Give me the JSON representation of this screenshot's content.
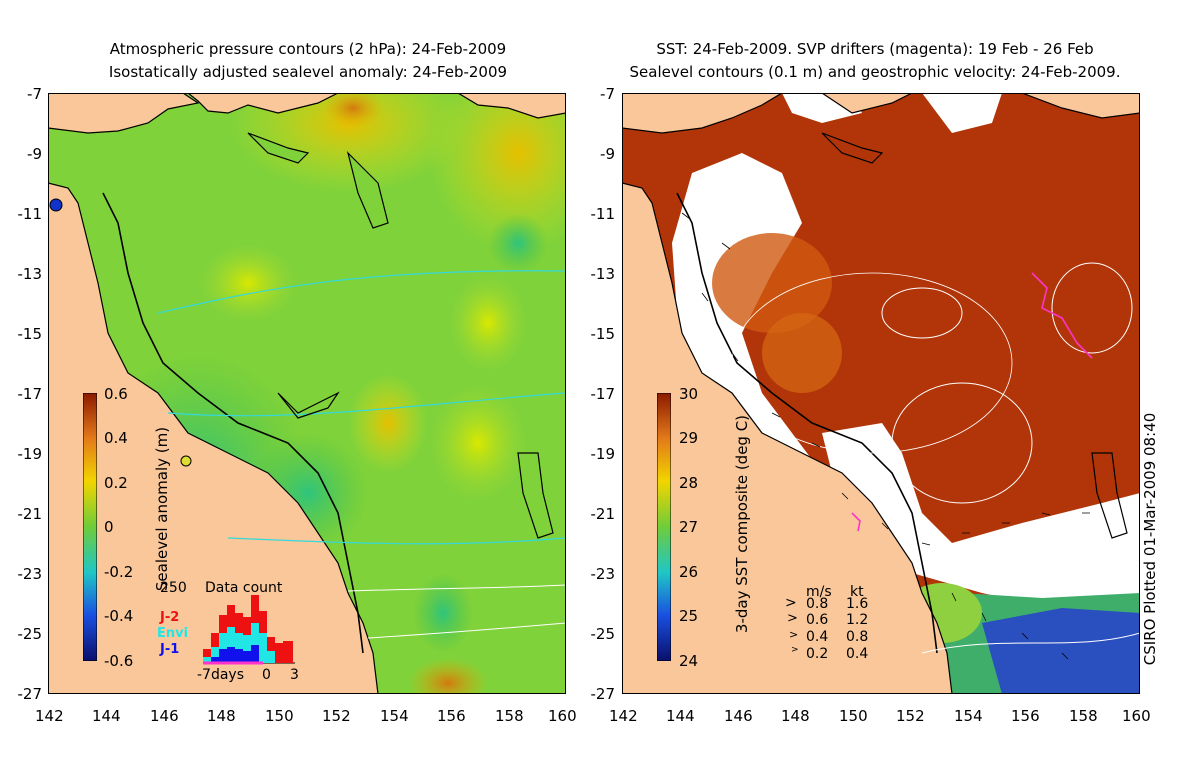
{
  "left_panel": {
    "title_line1": "Atmospheric pressure contours (2 hPa): 24-Feb-2009",
    "title_line2": "Isostatically adjusted sealevel anomaly: 24-Feb-2009",
    "colorbar": {
      "label": "Sealevel anomaly (m)",
      "ticks": [
        "0.6",
        "0.4",
        "0.2",
        "0",
        "-0.2",
        "-0.4",
        "-0.6"
      ],
      "range": [
        -0.6,
        0.6
      ]
    },
    "data_count": {
      "title": "Data count",
      "ymax_label": "250",
      "legend": [
        {
          "name": "J-2",
          "color": "#ee1111"
        },
        {
          "name": "Envi",
          "color": "#22e6e6"
        },
        {
          "name": "J-1",
          "color": "#1111ee"
        }
      ],
      "xlabel_days": "-7days",
      "xlabel_zero": "0",
      "xlabel_three": "3"
    }
  },
  "right_panel": {
    "title_line1": "SST: 24-Feb-2009. SVP drifters (magenta): 19 Feb - 26 Feb",
    "title_line2": "Sealevel contours (0.1 m) and geostrophic velocity: 24-Feb-2009.",
    "colorbar": {
      "label": "3-day SST composite (deg C)",
      "ticks": [
        "30",
        "29",
        "28",
        "27",
        "26",
        "25",
        "24"
      ],
      "range": [
        24,
        30
      ]
    },
    "velocity_legend": {
      "header_ms": "m/s",
      "header_kt": "kt",
      "rows": [
        {
          "ms": "0.8",
          "kt": "1.6"
        },
        {
          "ms": "0.6",
          "kt": "1.2"
        },
        {
          "ms": "0.4",
          "kt": "0.8"
        },
        {
          "ms": "0.2",
          "kt": "0.4"
        }
      ]
    }
  },
  "axes": {
    "lat_ticks": [
      "-7",
      "-9",
      "-11",
      "-13",
      "-15",
      "-17",
      "-19",
      "-21",
      "-23",
      "-25",
      "-27"
    ],
    "lon_ticks": [
      "142",
      "144",
      "146",
      "148",
      "150",
      "152",
      "154",
      "156",
      "158",
      "160"
    ]
  },
  "credit": "CSIRO Plotted 01-Mar-2009 08:40",
  "colors": {
    "land": "#f9c79a",
    "sst_warm": "#a82a08",
    "sla_green": "#7fd23a",
    "contour_cyan": "#35d9d9"
  }
}
